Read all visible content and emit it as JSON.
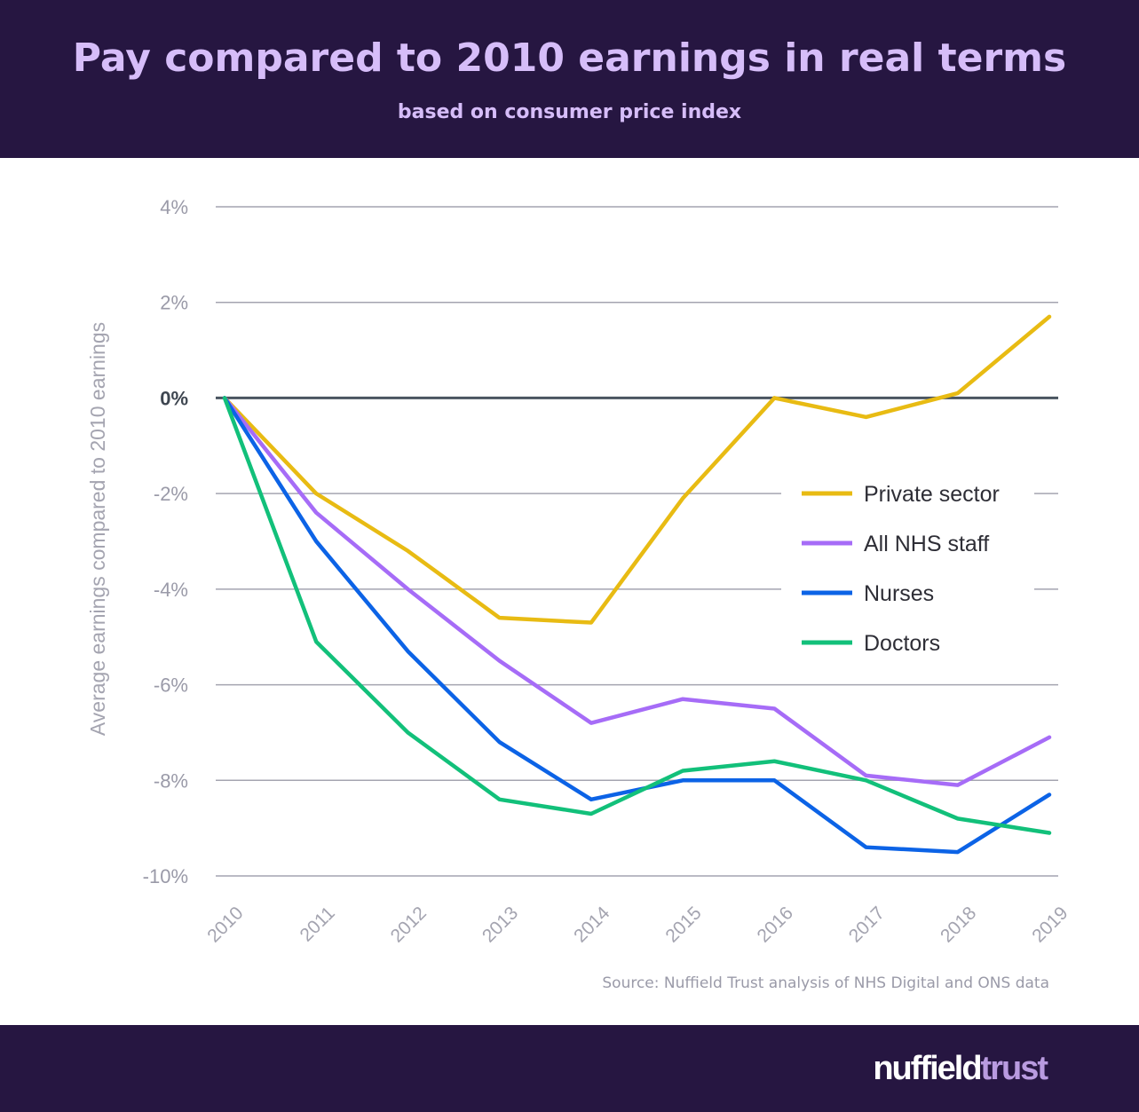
{
  "header": {
    "title": "Pay compared to 2010 earnings in real terms",
    "subtitle": "based on consumer price index"
  },
  "source": "Source: Nuffield Trust analysis of NHS Digital and ONS data",
  "logo": {
    "part1": "nuffield",
    "part2": "trust"
  },
  "chart_data": {
    "type": "line",
    "title": "Pay compared to 2010 earnings in real terms",
    "subtitle": "based on consumer price index",
    "xlabel": "",
    "ylabel": "Average earnings compared to 2010 earnings",
    "x": [
      "2010",
      "2011",
      "2012",
      "2013",
      "2014",
      "2015",
      "2016",
      "2017",
      "2018",
      "2019"
    ],
    "ylim": [
      -10,
      4
    ],
    "yticks": [
      4,
      2,
      0,
      -2,
      -4,
      -6,
      -8,
      -10
    ],
    "ytick_labels": [
      "4%",
      "2%",
      "0%",
      "-2%",
      "-4%",
      "-6%",
      "-8%",
      "-10%"
    ],
    "grid": true,
    "legend": "right",
    "series": [
      {
        "name": "Private sector",
        "color": "#e8bb13",
        "values": [
          0,
          -2.0,
          -3.2,
          -4.6,
          -4.7,
          -2.1,
          0,
          -0.4,
          0.1,
          1.7
        ]
      },
      {
        "name": "All NHS staff",
        "color": "#a66cf7",
        "values": [
          0,
          -2.4,
          -4.0,
          -5.5,
          -6.8,
          -6.3,
          -6.5,
          -7.9,
          -8.1,
          -7.1
        ]
      },
      {
        "name": "Nurses",
        "color": "#0c63e6",
        "values": [
          0,
          -3.0,
          -5.3,
          -7.2,
          -8.4,
          -8.0,
          -8.0,
          -9.4,
          -9.5,
          -8.3
        ]
      },
      {
        "name": "Doctors",
        "color": "#12c07a",
        "values": [
          0,
          -5.1,
          -7.0,
          -8.4,
          -8.7,
          -7.8,
          -7.6,
          -8.0,
          -8.8,
          -9.1
        ]
      }
    ]
  }
}
